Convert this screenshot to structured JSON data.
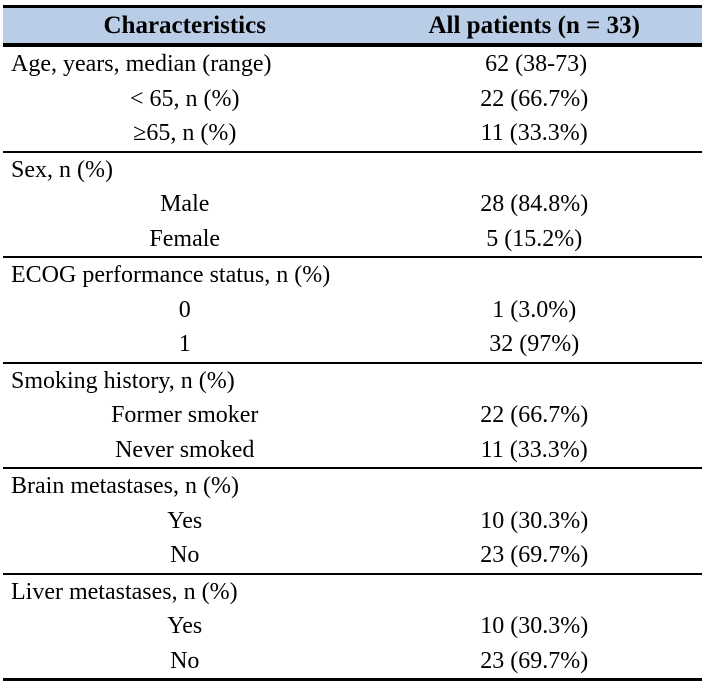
{
  "table": {
    "colors": {
      "header_bg": "#B9CDE6",
      "border": "#000000",
      "text": "#000000"
    },
    "header": {
      "col1": "Characteristics",
      "col2": "All patients (n = 33)"
    },
    "sections": [
      {
        "rows": [
          {
            "label": "Age, years, median (range)",
            "value": "62 (38-73)",
            "indent": false
          },
          {
            "label": "< 65, n (%)",
            "value": "22 (66.7%)",
            "indent": true
          },
          {
            "label": "≥65, n (%)",
            "value": "11 (33.3%)",
            "indent": true
          }
        ]
      },
      {
        "rows": [
          {
            "label": "Sex, n (%)",
            "value": "",
            "indent": false
          },
          {
            "label": "Male",
            "value": "28 (84.8%)",
            "indent": true
          },
          {
            "label": "Female",
            "value": "5 (15.2%)",
            "indent": true
          }
        ]
      },
      {
        "rows": [
          {
            "label": "ECOG performance status, n (%)",
            "value": "",
            "indent": false
          },
          {
            "label": "0",
            "value": "1 (3.0%)",
            "indent": true
          },
          {
            "label": "1",
            "value": "32 (97%)",
            "indent": true
          }
        ]
      },
      {
        "rows": [
          {
            "label": "Smoking history, n (%)",
            "value": "",
            "indent": false
          },
          {
            "label": "Former smoker",
            "value": "22 (66.7%)",
            "indent": true
          },
          {
            "label": "Never smoked",
            "value": "11 (33.3%)",
            "indent": true
          }
        ]
      },
      {
        "rows": [
          {
            "label": "Brain metastases, n (%)",
            "value": "",
            "indent": false
          },
          {
            "label": "Yes",
            "value": "10 (30.3%)",
            "indent": true
          },
          {
            "label": "No",
            "value": "23 (69.7%)",
            "indent": true
          }
        ]
      },
      {
        "rows": [
          {
            "label": "Liver metastases, n (%)",
            "value": "",
            "indent": false
          },
          {
            "label": "Yes",
            "value": "10 (30.3%)",
            "indent": true
          },
          {
            "label": "No",
            "value": "23 (69.7%)",
            "indent": true
          }
        ]
      }
    ]
  }
}
